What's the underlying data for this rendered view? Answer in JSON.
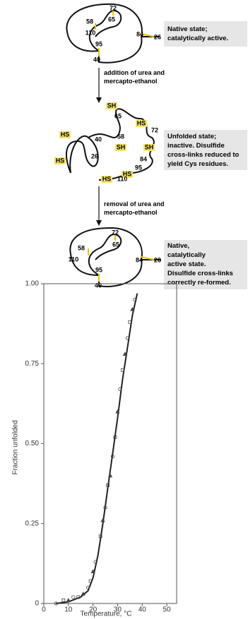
{
  "states": [
    {
      "labels": [
        "72",
        "65",
        "58",
        "110",
        "84",
        "26",
        "95",
        "40"
      ],
      "description": [
        "Native state;",
        "catalytically active."
      ]
    },
    {
      "labels": [
        "SH",
        "65",
        "HS",
        "72",
        "40",
        "58",
        "HS",
        "SH",
        "SH",
        "84",
        "26",
        "HS",
        "95",
        "HS",
        "HS",
        "110"
      ],
      "description": [
        "Unfolded state;",
        "inactive.  Disulfide",
        "cross-links reduced to",
        "yield Cys residues."
      ]
    },
    {
      "labels": [
        "72",
        "65",
        "58",
        "110",
        "84",
        "26",
        "95",
        "40"
      ],
      "description": [
        "Native,",
        "catalytically",
        "active state.",
        "Disulfide cross-links",
        "correctly re-formed."
      ]
    }
  ],
  "arrows": [
    {
      "text": [
        "addition of urea and",
        "mercapto-ethanol"
      ]
    },
    {
      "text": [
        "removal of urea and",
        "mercapto-ethanol"
      ]
    }
  ],
  "chart_data": {
    "type": "line",
    "ylabel": "Fraction unfolded",
    "xlabel": "Temperature, °C",
    "xlim": [
      0,
      54
    ],
    "ylim": [
      0,
      1.0
    ],
    "xticks": [
      0,
      10,
      20,
      30,
      40,
      50
    ],
    "yticks": [
      0,
      {
        "value": 0.25,
        "label": "0.25"
      },
      {
        "value": 0.5,
        "label": "0.50"
      },
      {
        "value": 0.75,
        "label": "0.75"
      },
      {
        "value": 1,
        "label": "1.00"
      }
    ],
    "series": [
      {
        "type": "line",
        "color": "#222",
        "x": [
          5,
          10,
          15,
          18,
          20,
          22,
          24,
          26,
          28,
          30,
          32,
          34,
          36,
          38
        ],
        "values": [
          0,
          0.005,
          0.02,
          0.04,
          0.08,
          0.15,
          0.25,
          0.36,
          0.47,
          0.58,
          0.7,
          0.8,
          0.9,
          0.97
        ]
      },
      {
        "type": "scatter",
        "color": "#444",
        "x": [
          5,
          8,
          10,
          12,
          14,
          16,
          18,
          19,
          20,
          21,
          23,
          24,
          25,
          26,
          27,
          28,
          29,
          30,
          31,
          32,
          33,
          34,
          35,
          36,
          37
        ],
        "values": [
          0,
          0.01,
          0.01,
          0.02,
          0.02,
          0.03,
          0.05,
          0.07,
          0.1,
          0.13,
          0.21,
          0.26,
          0.3,
          0.37,
          0.4,
          0.46,
          0.52,
          0.6,
          0.67,
          0.73,
          0.78,
          0.83,
          0.88,
          0.92,
          0.95
        ]
      }
    ]
  }
}
